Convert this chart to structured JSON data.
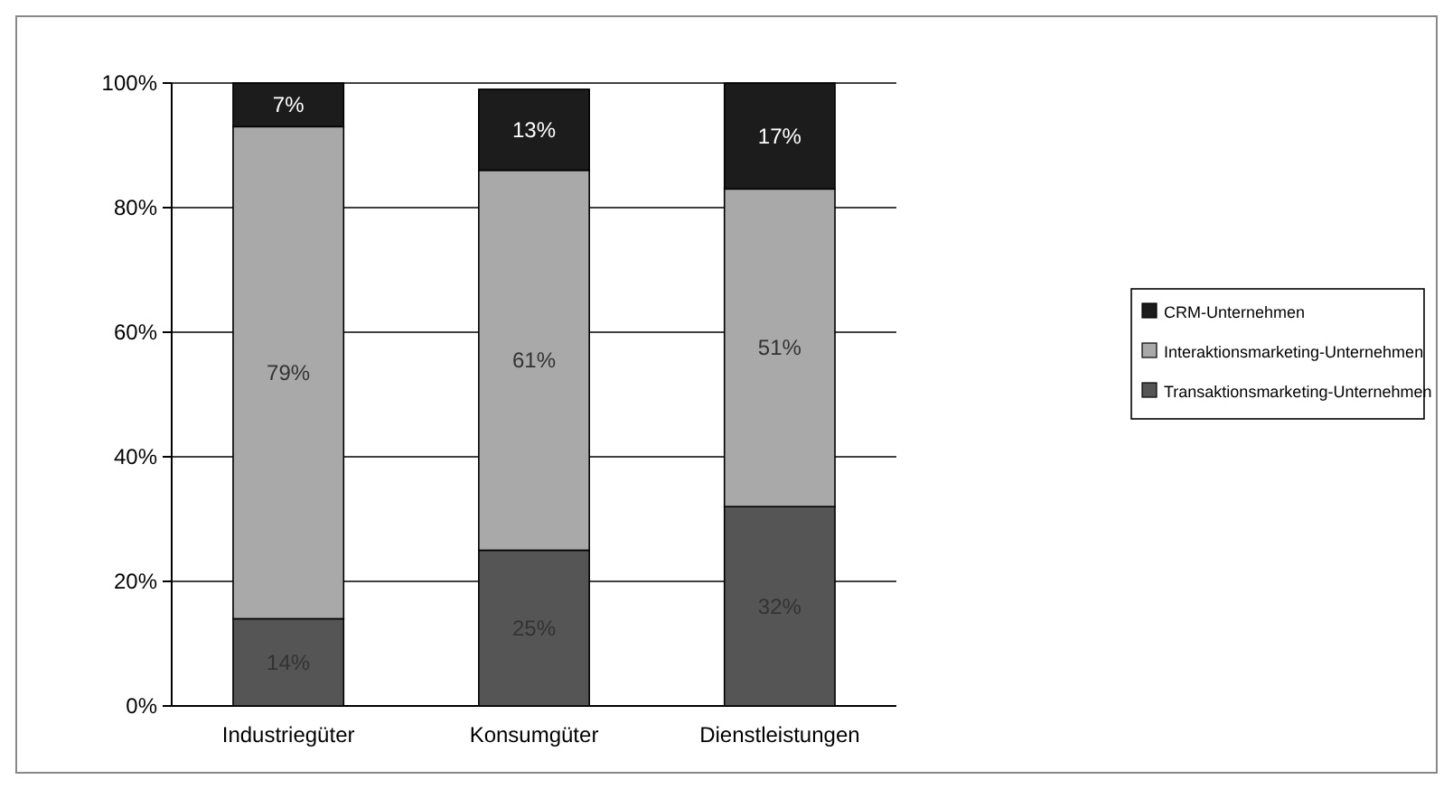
{
  "chart_data": {
    "type": "bar",
    "stacked": true,
    "categories": [
      "Industriegüter",
      "Konsumgüter",
      "Dienstleistungen"
    ],
    "series": [
      {
        "name": "Transaktionsmarketing-Unternehmen",
        "color": "#555555",
        "values": [
          14,
          25,
          32
        ],
        "value_labels": [
          "14%",
          "25%",
          "32%"
        ]
      },
      {
        "name": "Interaktionsmarketing-Unternehmen",
        "color": "#a9a9a9",
        "values": [
          79,
          61,
          51
        ],
        "value_labels": [
          "79%",
          "61%",
          "51%"
        ]
      },
      {
        "name": "CRM-Unternehmen",
        "color": "#1c1c1c",
        "values": [
          7,
          13,
          17
        ],
        "value_labels": [
          "7%",
          "13%",
          "17%"
        ]
      }
    ],
    "ylim": [
      0,
      100
    ],
    "yticks": [
      {
        "value": 0,
        "label": "0%"
      },
      {
        "value": 20,
        "label": "20%"
      },
      {
        "value": 40,
        "label": "40%"
      },
      {
        "value": 60,
        "label": "60%"
      },
      {
        "value": 80,
        "label": "80%"
      },
      {
        "value": 100,
        "label": "100%"
      }
    ],
    "grid": "y",
    "legend": "right"
  }
}
